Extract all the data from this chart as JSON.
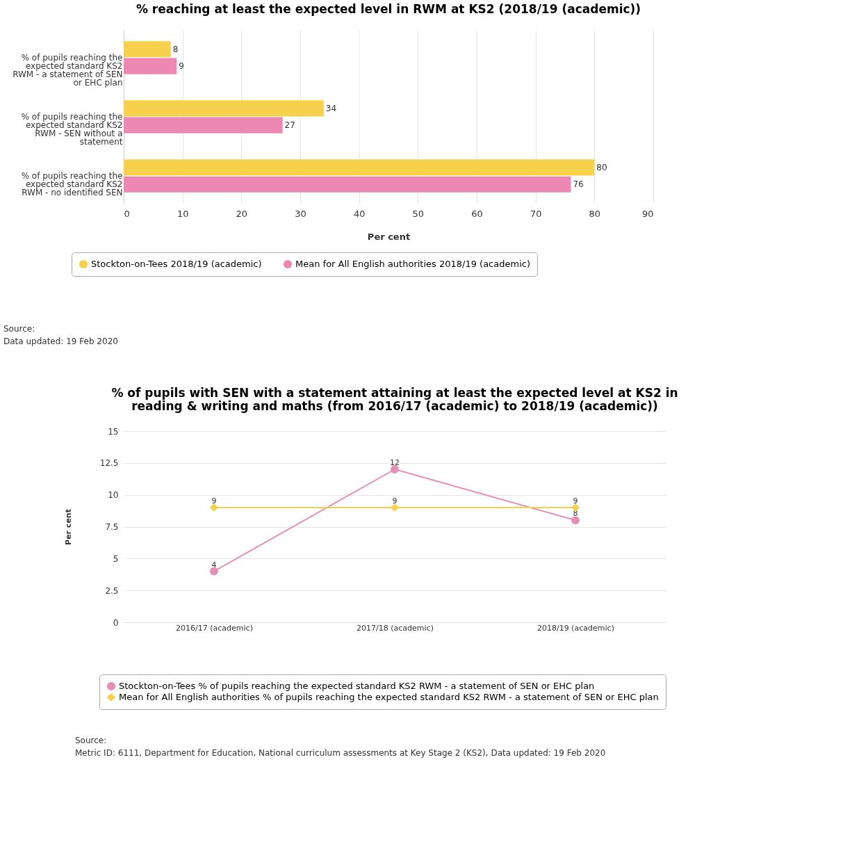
{
  "chart_data": [
    {
      "type": "bar",
      "orientation": "horizontal",
      "title": "% reaching at least the expected level in RWM at KS2 (2018/19 (academic))",
      "xlabel": "Per cent",
      "categories": [
        "% of pupils reaching the expected standard KS2 RWM - a statement of SEN or EHC plan",
        "% of pupils reaching the expected standard KS2 RWM - SEN without a statement",
        "% of pupils reaching the expected standard KS2 RWM - no identified SEN"
      ],
      "series": [
        {
          "name": "Stockton-on-Tees 2018/19 (academic)",
          "color": "#f8d14c",
          "values": [
            8,
            34,
            80
          ]
        },
        {
          "name": "Mean for All English authorities 2018/19 (academic)",
          "color": "#ec88b1",
          "values": [
            9,
            27,
            76
          ]
        }
      ],
      "xlim": [
        0,
        90
      ],
      "xticks": [
        0,
        10,
        20,
        30,
        40,
        50,
        60,
        70,
        80,
        90
      ],
      "grid": "x",
      "legend": "bottom",
      "data_labels": true,
      "annotations": [
        "Source:",
        "Data updated: 19 Feb 2020"
      ]
    },
    {
      "type": "line",
      "title": "% of pupils with SEN with a statement attaining at least the expected level at KS2 in reading & writing and maths (from 2016/17 (academic) to 2018/19 (academic))",
      "ylabel": "Per cent",
      "categories": [
        "2016/17 (academic)",
        "2017/18 (academic)",
        "2018/19 (academic)"
      ],
      "series": [
        {
          "name": "Stockton-on-Tees % of pupils reaching the expected standard KS2 RWM - a statement of SEN or EHC plan",
          "color": "#e58fb7",
          "marker": "circle",
          "values": [
            4,
            12,
            8
          ]
        },
        {
          "name": "Mean for All English authorities % of pupils reaching the expected standard KS2 RWM - a statement of SEN or EHC plan",
          "color": "#f8d14c",
          "marker": "diamond",
          "values": [
            9,
            9,
            9
          ]
        }
      ],
      "ylim": [
        0,
        15
      ],
      "yticks": [
        0,
        2.5,
        5,
        7.5,
        10,
        12.5,
        15
      ],
      "grid": "y",
      "legend": "bottom",
      "data_labels": true,
      "line_style": "solid",
      "annotations": [
        "Source:",
        "Metric ID: 6111, Department for Education, National curriculum assessments at Key Stage 2 (KS2), Data updated: 19 Feb 2020"
      ]
    }
  ]
}
